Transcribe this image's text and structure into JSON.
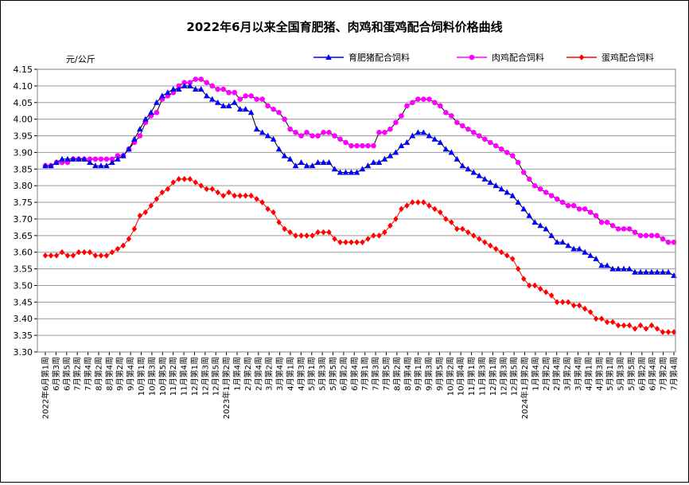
{
  "chart_data": {
    "type": "line",
    "title": "2022年6月以来全国育肥猪、肉鸡和蛋鸡配合饲料价格曲线",
    "ylabel": "元/公斤",
    "ylim": [
      3.3,
      4.15
    ],
    "y_ticks": [
      "3.30",
      "3.35",
      "3.40",
      "3.45",
      "3.50",
      "3.55",
      "3.60",
      "3.65",
      "3.70",
      "3.75",
      "3.80",
      "3.85",
      "3.90",
      "3.95",
      "4.00",
      "4.05",
      "4.10",
      "4.15"
    ],
    "grid": true,
    "legend_position": "top-right",
    "x_tick_labels": [
      "2022年6月第1周",
      "6月第3周",
      "6月第5周",
      "7月第2周",
      "7月第4周",
      "8月第2周",
      "8月第4周",
      "9月第2周",
      "9月第4周",
      "10月第1周",
      "10月第3周",
      "10月第5周",
      "11月第2周",
      "11月第4周",
      "12月第1周",
      "12月第3周",
      "12月第5周",
      "2023年1月第2周",
      "1月第4周",
      "2月第2周",
      "2月第4周",
      "3月第2周",
      "3月第4周",
      "4月第1周",
      "4月第3周",
      "5月第1周",
      "5月第3周",
      "5月第5周",
      "6月第2周",
      "6月第4周",
      "7月第1周",
      "7月第3周",
      "7月第5周",
      "8月第2周",
      "8月第4周",
      "9月第1周",
      "9月第3周",
      "9月第5周",
      "10月第2周",
      "10月第4周",
      "11月第1周",
      "11月第3周",
      "12月第1周",
      "12月第3周",
      "12月第5周",
      "2024年1月第2周",
      "1月第4周",
      "2月第2周",
      "2月第4周",
      "3月第2周",
      "3月第4周",
      "4月第1周",
      "4月第3周",
      "5月第1周",
      "5月第3周",
      "5月第5周",
      "6月第2周",
      "6月第4周",
      "7月第2周",
      "7月第4周"
    ],
    "series": [
      {
        "name": "育肥猪配合饲料",
        "color": "#0000ff",
        "line_color": "#000000",
        "marker": "triangle",
        "values": [
          3.86,
          3.86,
          3.87,
          3.88,
          3.88,
          3.88,
          3.88,
          3.88,
          3.87,
          3.86,
          3.86,
          3.86,
          3.87,
          3.88,
          3.89,
          3.91,
          3.94,
          3.97,
          4.0,
          4.02,
          4.05,
          4.07,
          4.08,
          4.09,
          4.09,
          4.1,
          4.1,
          4.09,
          4.09,
          4.07,
          4.06,
          4.05,
          4.04,
          4.04,
          4.05,
          4.03,
          4.03,
          4.02,
          3.97,
          3.96,
          3.95,
          3.94,
          3.91,
          3.89,
          3.88,
          3.86,
          3.87,
          3.86,
          3.86,
          3.87,
          3.87,
          3.87,
          3.85,
          3.84,
          3.84,
          3.84,
          3.84,
          3.85,
          3.86,
          3.87,
          3.87,
          3.88,
          3.89,
          3.9,
          3.92,
          3.93,
          3.95,
          3.96,
          3.96,
          3.95,
          3.94,
          3.93,
          3.91,
          3.9,
          3.88,
          3.86,
          3.85,
          3.84,
          3.83,
          3.82,
          3.81,
          3.8,
          3.79,
          3.78,
          3.77,
          3.75,
          3.73,
          3.71,
          3.69,
          3.68,
          3.67,
          3.65,
          3.63,
          3.63,
          3.62,
          3.61,
          3.61,
          3.6,
          3.59,
          3.58,
          3.56,
          3.56,
          3.55,
          3.55,
          3.55,
          3.55,
          3.54,
          3.54,
          3.54,
          3.54,
          3.54,
          3.54,
          3.54,
          3.53
        ]
      },
      {
        "name": "肉鸡配合饲料",
        "color": "#ff00ff",
        "line_color": "#000000",
        "marker": "circle",
        "values": [
          3.86,
          3.86,
          3.87,
          3.87,
          3.87,
          3.88,
          3.88,
          3.88,
          3.88,
          3.88,
          3.88,
          3.88,
          3.88,
          3.89,
          3.89,
          3.91,
          3.93,
          3.95,
          3.99,
          4.01,
          4.02,
          4.06,
          4.07,
          4.08,
          4.1,
          4.11,
          4.11,
          4.12,
          4.12,
          4.11,
          4.1,
          4.09,
          4.09,
          4.08,
          4.08,
          4.06,
          4.07,
          4.07,
          4.06,
          4.06,
          4.04,
          4.03,
          4.02,
          4.0,
          3.97,
          3.96,
          3.95,
          3.96,
          3.95,
          3.95,
          3.96,
          3.96,
          3.95,
          3.94,
          3.93,
          3.92,
          3.92,
          3.92,
          3.92,
          3.92,
          3.96,
          3.96,
          3.97,
          3.99,
          4.01,
          4.04,
          4.05,
          4.06,
          4.06,
          4.06,
          4.05,
          4.04,
          4.02,
          4.01,
          3.99,
          3.98,
          3.97,
          3.96,
          3.95,
          3.94,
          3.93,
          3.92,
          3.91,
          3.9,
          3.89,
          3.87,
          3.84,
          3.82,
          3.8,
          3.79,
          3.78,
          3.77,
          3.76,
          3.75,
          3.74,
          3.74,
          3.73,
          3.73,
          3.72,
          3.71,
          3.69,
          3.69,
          3.68,
          3.67,
          3.67,
          3.67,
          3.66,
          3.65,
          3.65,
          3.65,
          3.65,
          3.64,
          3.63,
          3.63
        ]
      },
      {
        "name": "蛋鸡配合饲料",
        "color": "#ff0000",
        "line_color": "#ff0000",
        "marker": "diamond",
        "values": [
          3.59,
          3.59,
          3.59,
          3.6,
          3.59,
          3.59,
          3.6,
          3.6,
          3.6,
          3.59,
          3.59,
          3.59,
          3.6,
          3.61,
          3.62,
          3.64,
          3.67,
          3.71,
          3.72,
          3.74,
          3.76,
          3.78,
          3.79,
          3.81,
          3.82,
          3.82,
          3.82,
          3.81,
          3.8,
          3.79,
          3.79,
          3.78,
          3.77,
          3.78,
          3.77,
          3.77,
          3.77,
          3.77,
          3.76,
          3.75,
          3.73,
          3.72,
          3.69,
          3.67,
          3.66,
          3.65,
          3.65,
          3.65,
          3.65,
          3.66,
          3.66,
          3.66,
          3.64,
          3.63,
          3.63,
          3.63,
          3.63,
          3.63,
          3.64,
          3.65,
          3.65,
          3.66,
          3.68,
          3.7,
          3.73,
          3.74,
          3.75,
          3.75,
          3.75,
          3.74,
          3.73,
          3.72,
          3.7,
          3.69,
          3.67,
          3.67,
          3.66,
          3.65,
          3.64,
          3.63,
          3.62,
          3.61,
          3.6,
          3.59,
          3.58,
          3.55,
          3.52,
          3.5,
          3.5,
          3.49,
          3.48,
          3.47,
          3.45,
          3.45,
          3.45,
          3.44,
          3.44,
          3.43,
          3.42,
          3.4,
          3.4,
          3.39,
          3.39,
          3.38,
          3.38,
          3.38,
          3.37,
          3.38,
          3.37,
          3.38,
          3.37,
          3.36,
          3.36,
          3.36
        ]
      }
    ]
  }
}
